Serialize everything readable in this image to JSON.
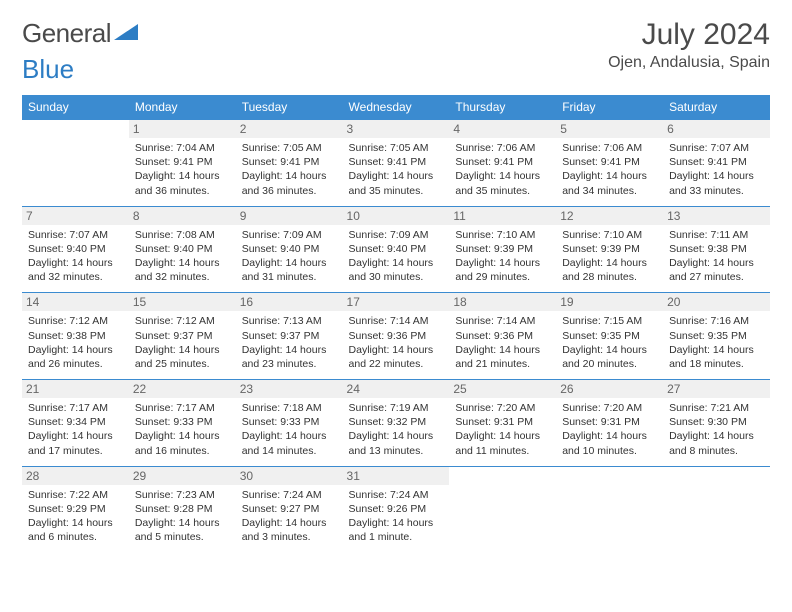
{
  "header": {
    "logo_part1": "General",
    "logo_part2": "Blue",
    "month_title": "July 2024",
    "location": "Ojen, Andalusia, Spain"
  },
  "colors": {
    "header_bg": "#3b8bd0",
    "header_text": "#ffffff",
    "day_num_bg": "#f0f0f0",
    "day_border": "#3b8bd0",
    "logo_accent": "#2d7dc4",
    "text": "#333333"
  },
  "weekdays": [
    "Sunday",
    "Monday",
    "Tuesday",
    "Wednesday",
    "Thursday",
    "Friday",
    "Saturday"
  ],
  "weeks": [
    [
      null,
      {
        "n": "1",
        "sr": "7:04 AM",
        "ss": "9:41 PM",
        "dl": "14 hours and 36 minutes."
      },
      {
        "n": "2",
        "sr": "7:05 AM",
        "ss": "9:41 PM",
        "dl": "14 hours and 36 minutes."
      },
      {
        "n": "3",
        "sr": "7:05 AM",
        "ss": "9:41 PM",
        "dl": "14 hours and 35 minutes."
      },
      {
        "n": "4",
        "sr": "7:06 AM",
        "ss": "9:41 PM",
        "dl": "14 hours and 35 minutes."
      },
      {
        "n": "5",
        "sr": "7:06 AM",
        "ss": "9:41 PM",
        "dl": "14 hours and 34 minutes."
      },
      {
        "n": "6",
        "sr": "7:07 AM",
        "ss": "9:41 PM",
        "dl": "14 hours and 33 minutes."
      }
    ],
    [
      {
        "n": "7",
        "sr": "7:07 AM",
        "ss": "9:40 PM",
        "dl": "14 hours and 32 minutes."
      },
      {
        "n": "8",
        "sr": "7:08 AM",
        "ss": "9:40 PM",
        "dl": "14 hours and 32 minutes."
      },
      {
        "n": "9",
        "sr": "7:09 AM",
        "ss": "9:40 PM",
        "dl": "14 hours and 31 minutes."
      },
      {
        "n": "10",
        "sr": "7:09 AM",
        "ss": "9:40 PM",
        "dl": "14 hours and 30 minutes."
      },
      {
        "n": "11",
        "sr": "7:10 AM",
        "ss": "9:39 PM",
        "dl": "14 hours and 29 minutes."
      },
      {
        "n": "12",
        "sr": "7:10 AM",
        "ss": "9:39 PM",
        "dl": "14 hours and 28 minutes."
      },
      {
        "n": "13",
        "sr": "7:11 AM",
        "ss": "9:38 PM",
        "dl": "14 hours and 27 minutes."
      }
    ],
    [
      {
        "n": "14",
        "sr": "7:12 AM",
        "ss": "9:38 PM",
        "dl": "14 hours and 26 minutes."
      },
      {
        "n": "15",
        "sr": "7:12 AM",
        "ss": "9:37 PM",
        "dl": "14 hours and 25 minutes."
      },
      {
        "n": "16",
        "sr": "7:13 AM",
        "ss": "9:37 PM",
        "dl": "14 hours and 23 minutes."
      },
      {
        "n": "17",
        "sr": "7:14 AM",
        "ss": "9:36 PM",
        "dl": "14 hours and 22 minutes."
      },
      {
        "n": "18",
        "sr": "7:14 AM",
        "ss": "9:36 PM",
        "dl": "14 hours and 21 minutes."
      },
      {
        "n": "19",
        "sr": "7:15 AM",
        "ss": "9:35 PM",
        "dl": "14 hours and 20 minutes."
      },
      {
        "n": "20",
        "sr": "7:16 AM",
        "ss": "9:35 PM",
        "dl": "14 hours and 18 minutes."
      }
    ],
    [
      {
        "n": "21",
        "sr": "7:17 AM",
        "ss": "9:34 PM",
        "dl": "14 hours and 17 minutes."
      },
      {
        "n": "22",
        "sr": "7:17 AM",
        "ss": "9:33 PM",
        "dl": "14 hours and 16 minutes."
      },
      {
        "n": "23",
        "sr": "7:18 AM",
        "ss": "9:33 PM",
        "dl": "14 hours and 14 minutes."
      },
      {
        "n": "24",
        "sr": "7:19 AM",
        "ss": "9:32 PM",
        "dl": "14 hours and 13 minutes."
      },
      {
        "n": "25",
        "sr": "7:20 AM",
        "ss": "9:31 PM",
        "dl": "14 hours and 11 minutes."
      },
      {
        "n": "26",
        "sr": "7:20 AM",
        "ss": "9:31 PM",
        "dl": "14 hours and 10 minutes."
      },
      {
        "n": "27",
        "sr": "7:21 AM",
        "ss": "9:30 PM",
        "dl": "14 hours and 8 minutes."
      }
    ],
    [
      {
        "n": "28",
        "sr": "7:22 AM",
        "ss": "9:29 PM",
        "dl": "14 hours and 6 minutes."
      },
      {
        "n": "29",
        "sr": "7:23 AM",
        "ss": "9:28 PM",
        "dl": "14 hours and 5 minutes."
      },
      {
        "n": "30",
        "sr": "7:24 AM",
        "ss": "9:27 PM",
        "dl": "14 hours and 3 minutes."
      },
      {
        "n": "31",
        "sr": "7:24 AM",
        "ss": "9:26 PM",
        "dl": "14 hours and 1 minute."
      },
      null,
      null,
      null
    ]
  ],
  "labels": {
    "sunrise": "Sunrise: ",
    "sunset": "Sunset: ",
    "daylight": "Daylight: "
  }
}
